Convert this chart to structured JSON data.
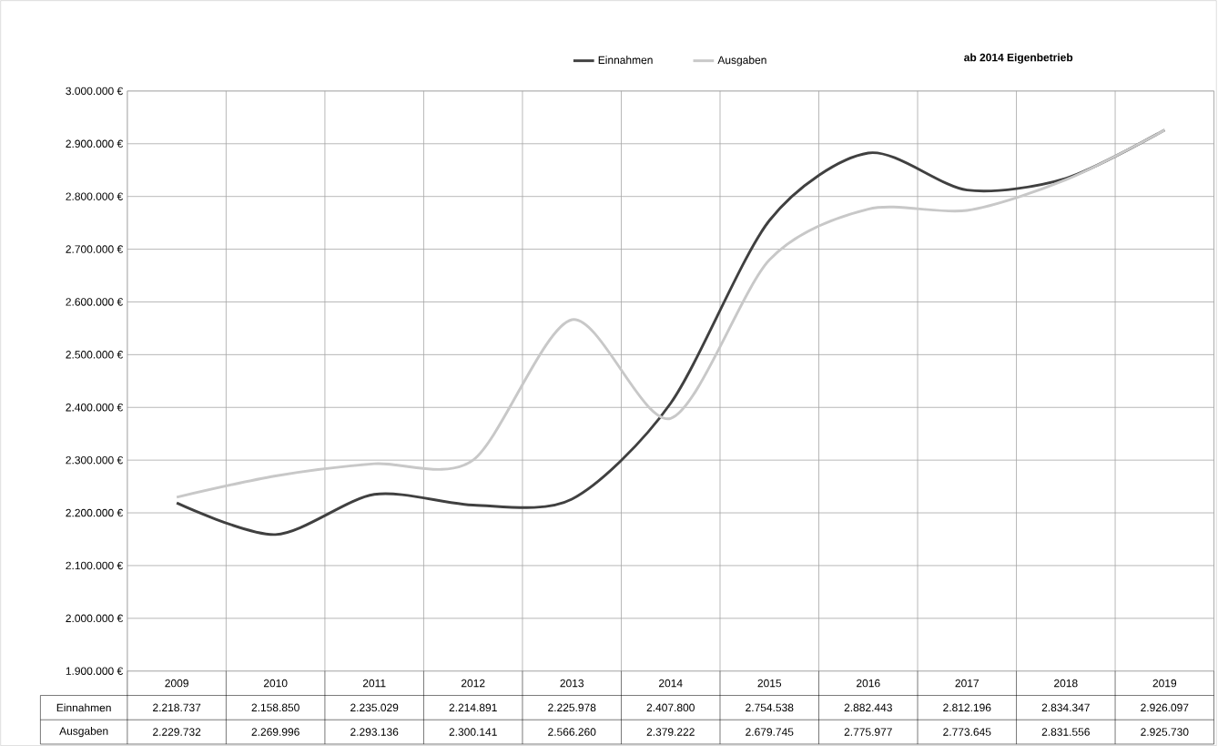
{
  "chart_data": {
    "type": "line",
    "categories": [
      "2009",
      "2010",
      "2011",
      "2012",
      "2013",
      "2014",
      "2015",
      "2016",
      "2017",
      "2018",
      "2019"
    ],
    "series": [
      {
        "name": "Einnahmen",
        "color": "#404040",
        "values": [
          2218737,
          2158850,
          2235029,
          2214891,
          2225978,
          2407800,
          2754538,
          2882443,
          2812196,
          2834347,
          2926097
        ],
        "value_labels": [
          "2.218.737",
          "2.158.850",
          "2.235.029",
          "2.214.891",
          "2.225.978",
          "2.407.800",
          "2.754.538",
          "2.882.443",
          "2.812.196",
          "2.834.347",
          "2.926.097"
        ]
      },
      {
        "name": "Ausgaben",
        "color": "#c8c8c8",
        "values": [
          2229732,
          2269996,
          2293136,
          2300141,
          2566260,
          2379222,
          2679745,
          2775977,
          2773645,
          2831556,
          2925730
        ],
        "value_labels": [
          "2.229.732",
          "2.269.996",
          "2.293.136",
          "2.300.141",
          "2.566.260",
          "2.379.222",
          "2.679.745",
          "2.775.977",
          "2.773.645",
          "2.831.556",
          "2.925.730"
        ]
      }
    ],
    "ylim": [
      1900000,
      3000000
    ],
    "yticks": [
      {
        "value": 1900000,
        "label": "1.900.000 €"
      },
      {
        "value": 2000000,
        "label": "2.000.000 €"
      },
      {
        "value": 2100000,
        "label": "2.100.000 €"
      },
      {
        "value": 2200000,
        "label": "2.200.000 €"
      },
      {
        "value": 2300000,
        "label": "2.300.000 €"
      },
      {
        "value": 2400000,
        "label": "2.400.000 €"
      },
      {
        "value": 2500000,
        "label": "2.500.000 €"
      },
      {
        "value": 2600000,
        "label": "2.600.000 €"
      },
      {
        "value": 2700000,
        "label": "2.700.000 €"
      },
      {
        "value": 2800000,
        "label": "2.800.000 €"
      },
      {
        "value": 2900000,
        "label": "2.900.000 €"
      },
      {
        "value": 3000000,
        "label": "3.000.000 €"
      }
    ],
    "grid": true,
    "legend": "top",
    "line_style": "solid",
    "marker": "none",
    "annotations": [
      "ab 2014 Eigenbetrieb"
    ]
  }
}
